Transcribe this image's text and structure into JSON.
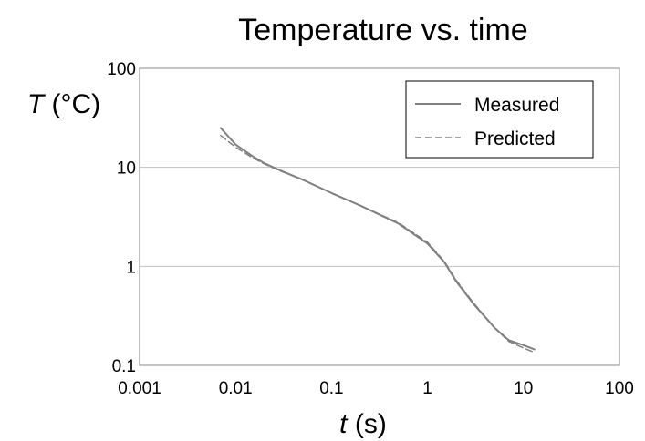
{
  "chart_data": {
    "type": "line",
    "title": "Temperature vs. time",
    "xlabel": {
      "var": "t",
      "unit": " (s)"
    },
    "ylabel": {
      "var": "T",
      "unit": " (°C)"
    },
    "xscale": "log",
    "yscale": "log",
    "xlim": [
      0.001,
      100
    ],
    "ylim": [
      0.1,
      100
    ],
    "x_ticks": [
      {
        "value": 0.001,
        "label": "0.001"
      },
      {
        "value": 0.01,
        "label": "0.01"
      },
      {
        "value": 0.1,
        "label": "0.1"
      },
      {
        "value": 1,
        "label": "1"
      },
      {
        "value": 10,
        "label": "10"
      },
      {
        "value": 100,
        "label": "100"
      }
    ],
    "y_ticks": [
      {
        "value": 0.1,
        "label": "0.1"
      },
      {
        "value": 1,
        "label": "1"
      },
      {
        "value": 10,
        "label": "10"
      },
      {
        "value": 100,
        "label": "100"
      }
    ],
    "grid": "horizontal major lines",
    "legend_position": "top-right",
    "series": [
      {
        "name": "Measured",
        "style": "solid",
        "color": "#808080",
        "x": [
          0.007,
          0.01,
          0.015,
          0.02,
          0.03,
          0.05,
          0.1,
          0.2,
          0.5,
          1,
          1.5,
          2,
          3,
          5,
          7,
          10,
          13
        ],
        "y": [
          25,
          17,
          13,
          11,
          9.2,
          7.5,
          5.5,
          4.1,
          2.7,
          1.7,
          1.1,
          0.7,
          0.42,
          0.24,
          0.18,
          0.16,
          0.145
        ]
      },
      {
        "name": "Predicted",
        "style": "dashed",
        "color": "#808080",
        "x": [
          0.007,
          0.01,
          0.015,
          0.02,
          0.03,
          0.05,
          0.1,
          0.2,
          0.5,
          1,
          1.5,
          2,
          3,
          5,
          7,
          10,
          13
        ],
        "y": [
          21,
          16,
          12.5,
          10.8,
          9.1,
          7.5,
          5.5,
          4.1,
          2.75,
          1.75,
          1.12,
          0.72,
          0.43,
          0.24,
          0.175,
          0.15,
          0.135
        ]
      }
    ]
  }
}
